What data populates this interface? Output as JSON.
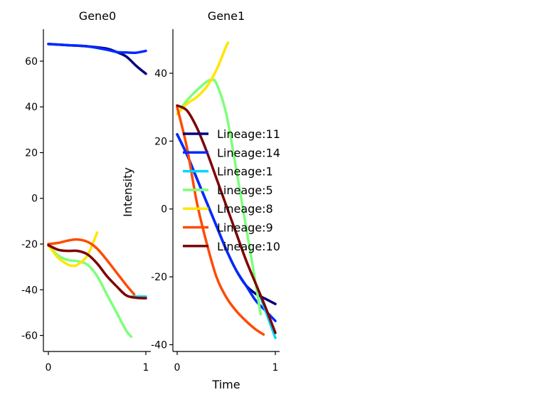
{
  "chart_data": [
    {
      "type": "line",
      "title": "Gene0",
      "xlabel": "",
      "ylabel": "",
      "xlim": [
        0,
        1
      ],
      "ylim": [
        -67,
        74
      ],
      "xticks": [
        0,
        1
      ],
      "yticks": [
        -60,
        -40,
        -20,
        0,
        20,
        40,
        60
      ],
      "series": [
        {
          "name": "Lineage:11",
          "color": "#00007f",
          "x": [
            0,
            0.2,
            0.4,
            0.6,
            0.7,
            0.8,
            0.9,
            1.0
          ],
          "y": [
            67.5,
            67,
            66.5,
            65.5,
            64,
            62,
            58,
            54.5
          ]
        },
        {
          "name": "Lineage:14",
          "color": "#0029ff",
          "x": [
            0,
            0.2,
            0.4,
            0.6,
            0.7,
            0.8,
            0.9,
            1.0
          ],
          "y": [
            67.5,
            67,
            66.5,
            65,
            64,
            63.8,
            63.7,
            64.5
          ]
        },
        {
          "name": "Lineage:1",
          "color": "#00d5ff",
          "x": [
            0.85,
            0.9,
            1.0
          ],
          "y": [
            -43,
            -43,
            -43
          ]
        },
        {
          "name": "Lineage:5",
          "color": "#7dff7a",
          "x": [
            0,
            0.1,
            0.2,
            0.3,
            0.4,
            0.5,
            0.6,
            0.7,
            0.8,
            0.85
          ],
          "y": [
            -20.5,
            -25,
            -27,
            -27.5,
            -29,
            -34,
            -42,
            -50,
            -58,
            -60.5
          ]
        },
        {
          "name": "Lineage:8",
          "color": "#ffe600",
          "x": [
            0,
            0.1,
            0.2,
            0.25,
            0.3,
            0.4,
            0.5
          ],
          "y": [
            -20.5,
            -26,
            -29,
            -29.5,
            -29,
            -25,
            -15
          ]
        },
        {
          "name": "Lineage:9",
          "color": "#ff4a00",
          "x": [
            0,
            0.1,
            0.2,
            0.3,
            0.4,
            0.5,
            0.6,
            0.7,
            0.8,
            0.88
          ],
          "y": [
            -20,
            -19.5,
            -18.5,
            -18,
            -19,
            -22,
            -27,
            -32.5,
            -38,
            -42
          ]
        },
        {
          "name": "Lineage:10",
          "color": "#7f0000",
          "x": [
            0,
            0.1,
            0.2,
            0.3,
            0.4,
            0.5,
            0.6,
            0.7,
            0.8,
            0.9,
            1.0
          ],
          "y": [
            -20.5,
            -22.5,
            -23,
            -23,
            -24.5,
            -28.5,
            -34,
            -38.5,
            -42.5,
            -43.5,
            -43.7
          ]
        }
      ]
    },
    {
      "type": "line",
      "title": "Gene1",
      "xlabel": "Time",
      "ylabel": "Intensity",
      "xlim": [
        0,
        1
      ],
      "ylim": [
        -42,
        53
      ],
      "xticks": [
        0,
        1
      ],
      "yticks": [
        -40,
        -20,
        0,
        20,
        40
      ],
      "legend": "center",
      "series": [
        {
          "name": "Lineage:11",
          "color": "#00007f",
          "x": [
            0,
            0.1,
            0.2,
            0.3,
            0.4,
            0.5,
            0.6,
            0.7,
            0.8,
            0.9,
            1.0
          ],
          "y": [
            22,
            16,
            9,
            2,
            -5,
            -12,
            -18,
            -22.5,
            -25,
            -26.5,
            -28
          ]
        },
        {
          "name": "Lineage:14",
          "color": "#0029ff",
          "x": [
            0,
            0.1,
            0.2,
            0.3,
            0.4,
            0.5,
            0.6,
            0.7,
            0.8,
            0.9,
            1.0
          ],
          "y": [
            22,
            16,
            9,
            2,
            -5,
            -12,
            -18,
            -22.5,
            -27,
            -30,
            -33
          ]
        },
        {
          "name": "Lineage:1",
          "color": "#00d5ff",
          "x": [
            0.85,
            0.9,
            0.95,
            1.0
          ],
          "y": [
            -26,
            -30,
            -34,
            -38
          ]
        },
        {
          "name": "Lineage:5",
          "color": "#7dff7a",
          "x": [
            0,
            0.1,
            0.2,
            0.3,
            0.35,
            0.4,
            0.5,
            0.6,
            0.7,
            0.8,
            0.85
          ],
          "y": [
            28,
            32,
            35,
            37.5,
            38,
            37,
            28,
            12,
            -5,
            -22,
            -31
          ]
        },
        {
          "name": "Lineage:8",
          "color": "#ffe600",
          "x": [
            0,
            0.1,
            0.2,
            0.3,
            0.4,
            0.5,
            0.52
          ],
          "y": [
            28,
            31,
            33,
            36,
            41,
            48,
            49
          ]
        },
        {
          "name": "Lineage:9",
          "color": "#ff4a00",
          "x": [
            0,
            0.1,
            0.2,
            0.3,
            0.4,
            0.5,
            0.6,
            0.7,
            0.8,
            0.88
          ],
          "y": [
            30,
            18,
            2,
            -10,
            -20,
            -26,
            -30,
            -33,
            -35.5,
            -37
          ]
        },
        {
          "name": "Lineage:10",
          "color": "#7f0000",
          "x": [
            0,
            0.1,
            0.2,
            0.3,
            0.4,
            0.5,
            0.6,
            0.7,
            0.8,
            0.9,
            1.0
          ],
          "y": [
            30.5,
            29,
            24,
            17,
            9,
            1,
            -7,
            -15,
            -22,
            -29,
            -36.5
          ]
        }
      ]
    }
  ]
}
